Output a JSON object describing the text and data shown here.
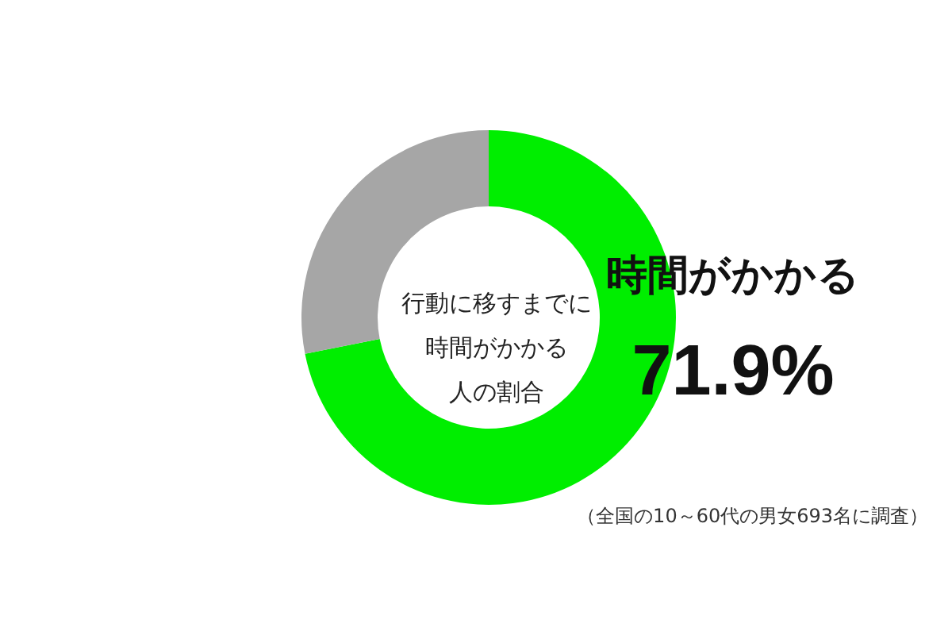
{
  "chart_data": {
    "type": "donut",
    "title": "行動に移すまでに時間がかかる人の割合",
    "categories": [
      "時間がかかる",
      null
    ],
    "values": [
      71.9,
      28.1
    ],
    "colors": [
      "#00ee00",
      "#a6a6a6"
    ],
    "value_labels": [
      "71.9%",
      null
    ],
    "annotations": [
      "（全国の10～60代の男女693名に調査）"
    ]
  }
}
